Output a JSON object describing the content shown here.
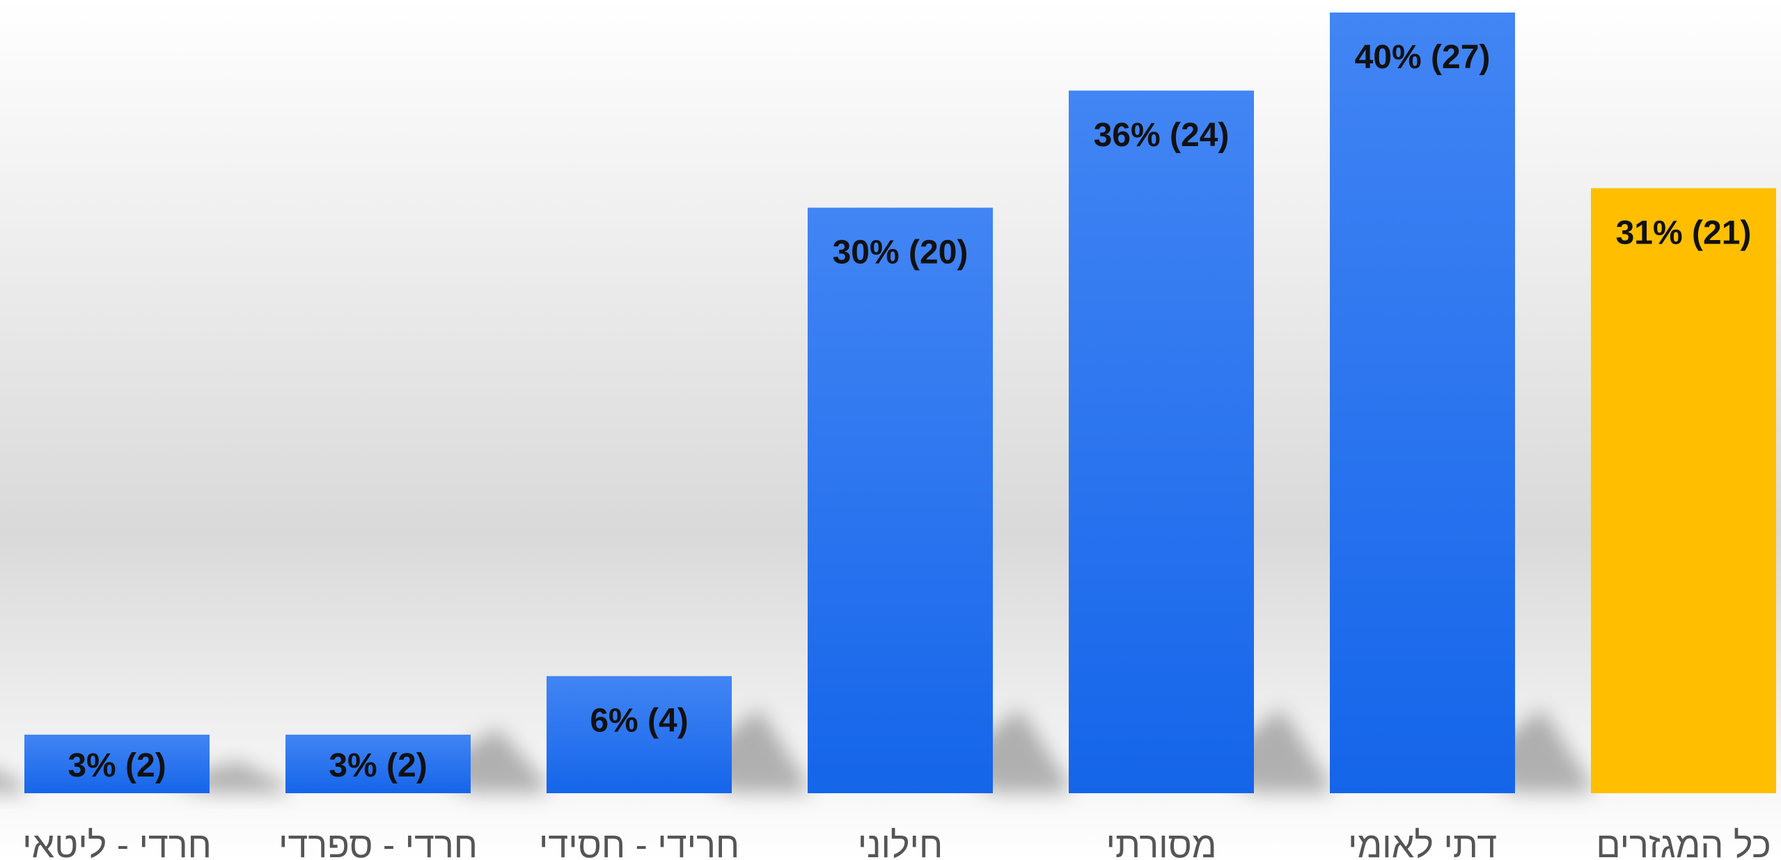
{
  "chart_data": {
    "type": "bar",
    "title": "",
    "xlabel": "",
    "ylabel": "",
    "grid": false,
    "legend": "none",
    "direction": "rtl",
    "ylim": [
      0,
      40
    ],
    "categories": [
      "כל המגזרים",
      "דתי לאומי",
      "מסורתי",
      "חילוני",
      "חרידי - חסידי",
      "חרדי - ספרדי",
      "חרדי - ליטאי"
    ],
    "values": [
      31,
      40,
      36,
      30,
      6,
      3,
      3
    ],
    "counts": [
      21,
      27,
      24,
      20,
      4,
      2,
      2
    ],
    "data_labels": [
      "31% (21)",
      "40% (27)",
      "36% (24)",
      "30% (20)",
      "6% (4)",
      "3% (2)",
      "3% (2)"
    ],
    "highlight_index": 0,
    "colors": {
      "highlight": "#FFBF00",
      "bar_top": "#4285F4",
      "bar_bottom": "#1565EA",
      "label_text": "#111111",
      "category_text": "#555555",
      "background_top": "#FFFFFF",
      "background_mid": "#D9D9D9"
    }
  }
}
